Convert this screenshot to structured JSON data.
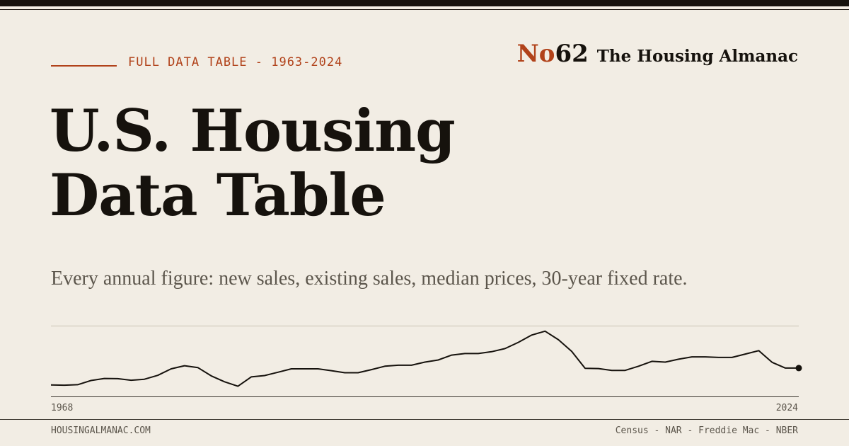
{
  "header": {
    "kicker": "FULL DATA TABLE - 1963-2024",
    "brand_no": "No",
    "brand_number": "62",
    "brand_name": "The Housing Almanac"
  },
  "title": {
    "line1": "U.S. Housing",
    "line2": "Data Table"
  },
  "subtitle": "Every annual figure: new sales, existing sales, median prices, 30-year fixed rate.",
  "sparkline": {
    "x_start_label": "1968",
    "x_end_label": "2024",
    "years": [
      1968,
      1969,
      1970,
      1971,
      1972,
      1973,
      1974,
      1975,
      1976,
      1977,
      1978,
      1979,
      1980,
      1981,
      1982,
      1983,
      1984,
      1985,
      1986,
      1987,
      1988,
      1989,
      1990,
      1991,
      1992,
      1993,
      1994,
      1995,
      1996,
      1997,
      1998,
      1999,
      2000,
      2001,
      2002,
      2003,
      2004,
      2005,
      2006,
      2007,
      2008,
      2009,
      2010,
      2011,
      2012,
      2013,
      2014,
      2015,
      2016,
      2017,
      2018,
      2019,
      2020,
      2021,
      2022,
      2023,
      2024
    ],
    "values": [
      2.8,
      2.7,
      2.9,
      4.5,
      5.3,
      5.2,
      4.6,
      5.0,
      6.5,
      9.0,
      10.2,
      9.5,
      6.3,
      4.0,
      2.3,
      5.9,
      6.4,
      7.7,
      9.0,
      9.0,
      9.0,
      8.3,
      7.5,
      7.5,
      8.7,
      10.0,
      10.4,
      10.4,
      11.6,
      12.4,
      14.3,
      14.9,
      14.9,
      15.6,
      16.8,
      19.2,
      22.0,
      23.5,
      20.2,
      15.7,
      9.2,
      9.1,
      8.4,
      8.4,
      10.0,
      11.9,
      11.6,
      12.7,
      13.6,
      13.6,
      13.4,
      13.4,
      14.7,
      16.0,
      11.5,
      9.3,
      9.3
    ],
    "color": "#16120d"
  },
  "footer": {
    "site": "HOUSINGALMANAC.COM",
    "sources": "Census - NAR - Freddie Mac - NBER"
  },
  "colors": {
    "background": "#f2ede4",
    "ink": "#16120d",
    "accent": "#b1421a",
    "muted": "#5c564c"
  }
}
